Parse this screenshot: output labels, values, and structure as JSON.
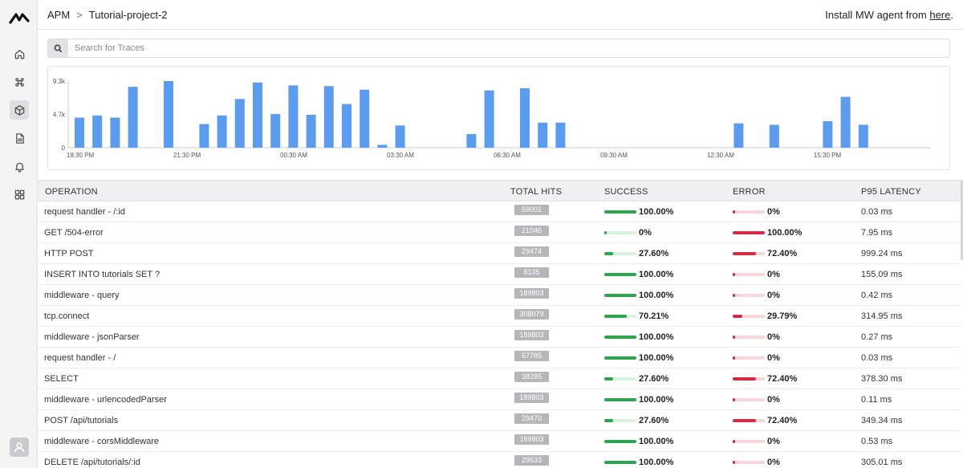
{
  "nav": {
    "items": [
      {
        "name": "home-icon",
        "active": false
      },
      {
        "name": "command-icon",
        "active": false
      },
      {
        "name": "cube-icon",
        "active": true
      },
      {
        "name": "document-icon",
        "active": false
      },
      {
        "name": "bell-icon",
        "active": false
      },
      {
        "name": "grid-icon",
        "active": false
      }
    ]
  },
  "header": {
    "crumb_root": "APM",
    "crumb_sep": ">",
    "crumb_project": "Tutorial-project-2",
    "install_text": "Install MW agent from ",
    "install_link": "here",
    "install_end": "."
  },
  "search": {
    "placeholder": "Search for Traces"
  },
  "chart_data": {
    "type": "bar",
    "y_ticks": [
      "9.3k",
      "4.7k",
      "0"
    ],
    "ylim": [
      0,
      9300
    ],
    "x_ticks": [
      "18:30 PM",
      "21:30 PM",
      "00:30 AM",
      "03:30 AM",
      "06:30 AM",
      "09:30 AM",
      "12:30 AM",
      "15:30 PM"
    ],
    "bar_color": "#5b9cf0",
    "values": [
      4200,
      4500,
      4200,
      8500,
      0,
      9300,
      0,
      3300,
      4500,
      6800,
      9100,
      4700,
      8700,
      4600,
      8600,
      6100,
      8100,
      400,
      3100,
      0,
      0,
      0,
      1900,
      8000,
      0,
      8300,
      3500,
      3500,
      0,
      0,
      0,
      0,
      0,
      0,
      0,
      0,
      0,
      3400,
      0,
      3200,
      0,
      0,
      3700,
      7100,
      3200,
      0
    ]
  },
  "table": {
    "headers": {
      "operation": "OPERATION",
      "total_hits": "TOTAL HITS",
      "success": "SUCCESS",
      "error": "ERROR",
      "latency": "P95 LATENCY"
    },
    "rows": [
      {
        "operation": "request handler - /:id",
        "hits": "59001",
        "success": "100.00%",
        "success_frac": 1.0,
        "error": "0%",
        "error_frac": 0.0,
        "latency": "0.03 ms"
      },
      {
        "operation": "GET /504-error",
        "hits": "21046",
        "success": "0%",
        "success_frac": 0.0,
        "error": "100.00%",
        "error_frac": 1.0,
        "latency": "7.95 ms"
      },
      {
        "operation": "HTTP POST",
        "hits": "29474",
        "success": "27.60%",
        "success_frac": 0.276,
        "error": "72.40%",
        "error_frac": 0.724,
        "latency": "999.24 ms"
      },
      {
        "operation": "INSERT INTO tutorials SET ?",
        "hits": "8135",
        "success": "100.00%",
        "success_frac": 1.0,
        "error": "0%",
        "error_frac": 0.0,
        "latency": "155.09 ms"
      },
      {
        "operation": "middleware - query",
        "hits": "189803",
        "success": "100.00%",
        "success_frac": 1.0,
        "error": "0%",
        "error_frac": 0.0,
        "latency": "0.42 ms"
      },
      {
        "operation": "tcp.connect",
        "hits": "308079",
        "success": "70.21%",
        "success_frac": 0.7021,
        "error": "29.79%",
        "error_frac": 0.2979,
        "latency": "314.95 ms"
      },
      {
        "operation": "middleware - jsonParser",
        "hits": "189803",
        "success": "100.00%",
        "success_frac": 1.0,
        "error": "0%",
        "error_frac": 0.0,
        "latency": "0.27 ms"
      },
      {
        "operation": "request handler - /",
        "hits": "67785",
        "success": "100.00%",
        "success_frac": 1.0,
        "error": "0%",
        "error_frac": 0.0,
        "latency": "0.03 ms"
      },
      {
        "operation": "SELECT",
        "hits": "38285",
        "success": "27.60%",
        "success_frac": 0.276,
        "error": "72.40%",
        "error_frac": 0.724,
        "latency": "378.30 ms"
      },
      {
        "operation": "middleware - urlencodedParser",
        "hits": "189803",
        "success": "100.00%",
        "success_frac": 1.0,
        "error": "0%",
        "error_frac": 0.0,
        "latency": "0.11 ms"
      },
      {
        "operation": "POST /api/tutorials",
        "hits": "29470",
        "success": "27.60%",
        "success_frac": 0.276,
        "error": "72.40%",
        "error_frac": 0.724,
        "latency": "349.34 ms"
      },
      {
        "operation": "middleware - corsMiddleware",
        "hits": "189803",
        "success": "100.00%",
        "success_frac": 1.0,
        "error": "0%",
        "error_frac": 0.0,
        "latency": "0.53 ms"
      },
      {
        "operation": "DELETE /api/tutorials/:id",
        "hits": "29533",
        "success": "100.00%",
        "success_frac": 1.0,
        "error": "0%",
        "error_frac": 0.0,
        "latency": "305.01 ms"
      }
    ]
  }
}
